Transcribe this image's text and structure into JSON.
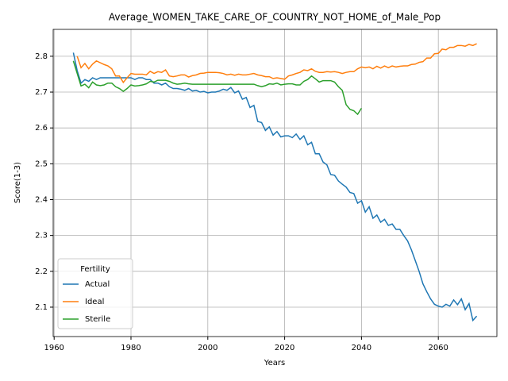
{
  "chart_data": {
    "type": "line",
    "title": "Average_WOMEN_TAKE_CARE_OF_COUNTRY_NOT_HOME_of_Male_Pop",
    "x_label": "Years",
    "y_label": "Score(1-3)",
    "legend_title": "Fertility",
    "legend_position": "lower left",
    "grid": true,
    "xlim": [
      1959.75,
      2075.25
    ],
    "xticks": [
      1960,
      1980,
      2000,
      2020,
      2040,
      2060
    ],
    "ylim": [
      2.018,
      2.875
    ],
    "yticks": [
      2.1,
      2.2,
      2.3,
      2.4,
      2.5,
      2.6,
      2.7,
      2.8
    ],
    "x": [
      1965,
      1966,
      1967,
      1968,
      1969,
      1970,
      1971,
      1972,
      1973,
      1974,
      1975,
      1976,
      1977,
      1978,
      1979,
      1980,
      1981,
      1982,
      1983,
      1984,
      1985,
      1986,
      1987,
      1988,
      1989,
      1990,
      1991,
      1992,
      1993,
      1994,
      1995,
      1996,
      1997,
      1998,
      1999,
      2000,
      2001,
      2002,
      2003,
      2004,
      2005,
      2006,
      2007,
      2008,
      2009,
      2010,
      2011,
      2012,
      2013,
      2014,
      2015,
      2016,
      2017,
      2018,
      2019,
      2020,
      2021,
      2022,
      2023,
      2024,
      2025,
      2026,
      2027,
      2028,
      2029,
      2030,
      2031,
      2032,
      2033,
      2034,
      2035,
      2036,
      2037,
      2038,
      2039,
      2040,
      2041,
      2042,
      2043,
      2044,
      2045,
      2046,
      2047,
      2048,
      2049,
      2050,
      2051,
      2052,
      2053,
      2054,
      2055,
      2056,
      2057,
      2058,
      2059,
      2060,
      2061,
      2062,
      2063,
      2064,
      2065,
      2066,
      2067,
      2068,
      2069,
      2070
    ],
    "series": [
      {
        "name": "Actual",
        "color": "#1f77b4",
        "values": [
          2.81,
          2.76,
          2.725,
          2.735,
          2.73,
          2.74,
          2.735,
          2.74,
          2.74,
          2.74,
          2.74,
          2.74,
          2.74,
          2.74,
          2.74,
          2.74,
          2.735,
          2.74,
          2.74,
          2.735,
          2.735,
          2.725,
          2.725,
          2.72,
          2.725,
          2.715,
          2.71,
          2.71,
          2.708,
          2.705,
          2.71,
          2.703,
          2.705,
          2.7,
          2.702,
          2.698,
          2.7,
          2.7,
          2.703,
          2.708,
          2.705,
          2.713,
          2.698,
          2.703,
          2.68,
          2.685,
          2.657,
          2.663,
          2.618,
          2.615,
          2.593,
          2.603,
          2.58,
          2.59,
          2.575,
          2.578,
          2.578,
          2.573,
          2.583,
          2.568,
          2.578,
          2.553,
          2.56,
          2.528,
          2.528,
          2.505,
          2.497,
          2.47,
          2.468,
          2.452,
          2.443,
          2.435,
          2.42,
          2.417,
          2.39,
          2.397,
          2.365,
          2.38,
          2.348,
          2.357,
          2.337,
          2.345,
          2.328,
          2.332,
          2.317,
          2.317,
          2.3,
          2.285,
          2.26,
          2.23,
          2.2,
          2.165,
          2.143,
          2.123,
          2.108,
          2.103,
          2.1,
          2.108,
          2.103,
          2.12,
          2.107,
          2.123,
          2.093,
          2.11,
          2.063,
          2.075
        ]
      },
      {
        "name": "Ideal",
        "color": "#ff7f0e",
        "values": [
          null,
          2.8,
          2.768,
          2.78,
          2.765,
          2.778,
          2.787,
          2.782,
          2.777,
          2.773,
          2.765,
          2.745,
          2.745,
          2.727,
          2.74,
          2.752,
          2.75,
          2.75,
          2.75,
          2.748,
          2.758,
          2.752,
          2.757,
          2.755,
          2.762,
          2.745,
          2.743,
          2.745,
          2.748,
          2.748,
          2.742,
          2.746,
          2.748,
          2.752,
          2.753,
          2.755,
          2.755,
          2.755,
          2.754,
          2.752,
          2.748,
          2.75,
          2.747,
          2.75,
          2.748,
          2.748,
          2.75,
          2.752,
          2.748,
          2.746,
          2.743,
          2.743,
          2.738,
          2.74,
          2.738,
          2.736,
          2.745,
          2.748,
          2.752,
          2.755,
          2.762,
          2.76,
          2.765,
          2.758,
          2.755,
          2.755,
          2.757,
          2.756,
          2.757,
          2.755,
          2.752,
          2.755,
          2.757,
          2.757,
          2.765,
          2.77,
          2.768,
          2.77,
          2.765,
          2.772,
          2.767,
          2.773,
          2.768,
          2.773,
          2.77,
          2.772,
          2.773,
          2.773,
          2.777,
          2.778,
          2.783,
          2.785,
          2.795,
          2.795,
          2.807,
          2.808,
          2.82,
          2.818,
          2.825,
          2.825,
          2.83,
          2.83,
          2.828,
          2.833,
          2.83,
          2.835
        ]
      },
      {
        "name": "Sterile",
        "color": "#2ca02c",
        "values": [
          2.787,
          2.752,
          2.717,
          2.722,
          2.712,
          2.728,
          2.72,
          2.718,
          2.72,
          2.725,
          2.725,
          2.715,
          2.71,
          2.702,
          2.71,
          2.72,
          2.717,
          2.718,
          2.72,
          2.723,
          2.73,
          2.728,
          2.733,
          2.733,
          2.733,
          2.73,
          2.725,
          2.722,
          2.723,
          2.725,
          2.723,
          2.722,
          2.722,
          2.722,
          2.722,
          2.722,
          2.722,
          2.722,
          2.722,
          2.722,
          2.722,
          2.722,
          2.722,
          2.722,
          2.722,
          2.722,
          2.722,
          2.722,
          2.718,
          2.715,
          2.718,
          2.723,
          2.722,
          2.725,
          2.72,
          2.722,
          2.723,
          2.723,
          2.72,
          2.72,
          2.73,
          2.735,
          2.745,
          2.737,
          2.728,
          2.732,
          2.732,
          2.732,
          2.728,
          2.715,
          2.705,
          2.665,
          2.652,
          2.648,
          2.638,
          2.655,
          null,
          null,
          null,
          null,
          null,
          null,
          null,
          null,
          null,
          null,
          null,
          null,
          null,
          null,
          null,
          null,
          null,
          null,
          null,
          null,
          null,
          null,
          null,
          null,
          null,
          null,
          null,
          null,
          null,
          null
        ]
      }
    ]
  }
}
